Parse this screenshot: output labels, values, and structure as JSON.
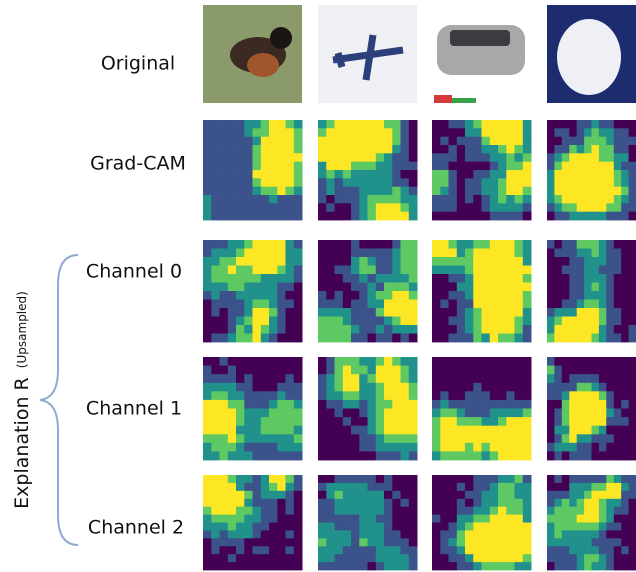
{
  "row_labels": [
    "Original",
    "Grad-CAM",
    "Channel 0",
    "Channel 1",
    "Channel 2"
  ],
  "side_label": {
    "main": "Explanation R",
    "sub": "(Upsampled)"
  }
}
